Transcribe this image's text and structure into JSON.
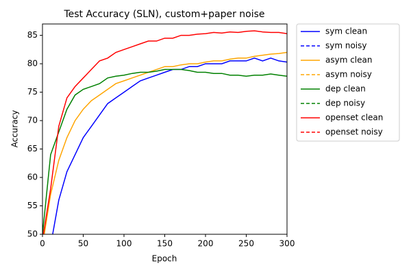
{
  "chart_data": {
    "type": "line",
    "title": "Test Accuracy (SLN), custom+paper noise",
    "xlabel": "Epoch",
    "ylabel": "Accuracy",
    "x": [
      0,
      10,
      20,
      30,
      40,
      50,
      60,
      70,
      80,
      90,
      100,
      110,
      120,
      130,
      140,
      150,
      160,
      170,
      180,
      190,
      200,
      210,
      220,
      230,
      240,
      250,
      260,
      270,
      280,
      290,
      300
    ],
    "xlim": [
      0,
      300
    ],
    "xticks": [
      0,
      50,
      100,
      150,
      200,
      250,
      300
    ],
    "ylim": [
      50,
      87
    ],
    "yticks": [
      50,
      55,
      60,
      65,
      70,
      75,
      80,
      85
    ],
    "legend": "outside-right",
    "series": [
      {
        "name": "sym clean",
        "color": "#0000ff",
        "linestyle": "solid",
        "values": [
          45,
          48,
          56,
          61,
          64,
          67,
          69,
          71,
          73,
          74,
          75,
          76,
          77,
          77.5,
          78,
          78.5,
          79,
          79,
          79.5,
          79.5,
          80,
          80,
          80,
          80.5,
          80.5,
          80.5,
          81,
          80.5,
          81,
          80.5,
          80.3
        ]
      },
      {
        "name": "sym noisy",
        "color": "#0000ff",
        "linestyle": "dashed",
        "values": [
          null,
          null,
          null,
          null,
          null,
          null,
          null,
          null,
          null,
          null,
          null,
          null,
          null,
          null,
          null,
          null,
          null,
          null,
          null,
          null,
          null,
          null,
          null,
          null,
          null,
          null,
          null,
          null,
          null,
          null,
          null
        ]
      },
      {
        "name": "asym clean",
        "color": "#ffa500",
        "linestyle": "solid",
        "values": [
          48,
          57,
          63,
          67,
          70,
          72,
          73.5,
          74.5,
          75.5,
          76.5,
          77,
          77.5,
          78,
          78.5,
          79,
          79.5,
          79.5,
          79.8,
          80,
          80,
          80.3,
          80.5,
          80.5,
          80.8,
          81,
          81,
          81.3,
          81.5,
          81.7,
          81.8,
          82
        ]
      },
      {
        "name": "asym noisy",
        "color": "#ffa500",
        "linestyle": "dashed",
        "values": [
          null,
          null,
          null,
          null,
          null,
          null,
          null,
          null,
          null,
          null,
          null,
          null,
          null,
          null,
          null,
          null,
          null,
          null,
          null,
          null,
          null,
          null,
          null,
          null,
          null,
          null,
          null,
          null,
          null,
          null,
          null
        ]
      },
      {
        "name": "dep clean",
        "color": "#008000",
        "linestyle": "solid",
        "values": [
          50,
          64,
          68,
          72,
          74.5,
          75.5,
          76,
          76.5,
          77.5,
          77.8,
          78,
          78.3,
          78.5,
          78.5,
          78.7,
          79,
          79,
          79,
          78.8,
          78.5,
          78.5,
          78.3,
          78.3,
          78,
          78,
          77.8,
          78,
          78,
          78.2,
          78,
          77.8
        ]
      },
      {
        "name": "dep noisy",
        "color": "#008000",
        "linestyle": "dashed",
        "values": [
          null,
          null,
          null,
          null,
          null,
          null,
          null,
          null,
          null,
          null,
          null,
          null,
          null,
          null,
          null,
          null,
          null,
          null,
          null,
          null,
          null,
          null,
          null,
          null,
          null,
          null,
          null,
          null,
          null,
          null,
          null
        ]
      },
      {
        "name": "openset clean",
        "color": "#ff0000",
        "linestyle": "solid",
        "values": [
          49,
          58,
          69,
          74,
          76,
          77.5,
          79,
          80.5,
          81,
          82,
          82.5,
          83,
          83.5,
          84,
          84,
          84.5,
          84.5,
          85,
          85,
          85.2,
          85.3,
          85.5,
          85.4,
          85.6,
          85.5,
          85.7,
          85.8,
          85.6,
          85.5,
          85.5,
          85.3
        ]
      },
      {
        "name": "openset noisy",
        "color": "#ff0000",
        "linestyle": "dashed",
        "values": [
          null,
          null,
          null,
          null,
          null,
          null,
          null,
          null,
          null,
          null,
          null,
          null,
          null,
          null,
          null,
          null,
          null,
          null,
          null,
          null,
          null,
          null,
          null,
          null,
          null,
          null,
          null,
          null,
          null,
          null,
          null
        ]
      }
    ]
  }
}
